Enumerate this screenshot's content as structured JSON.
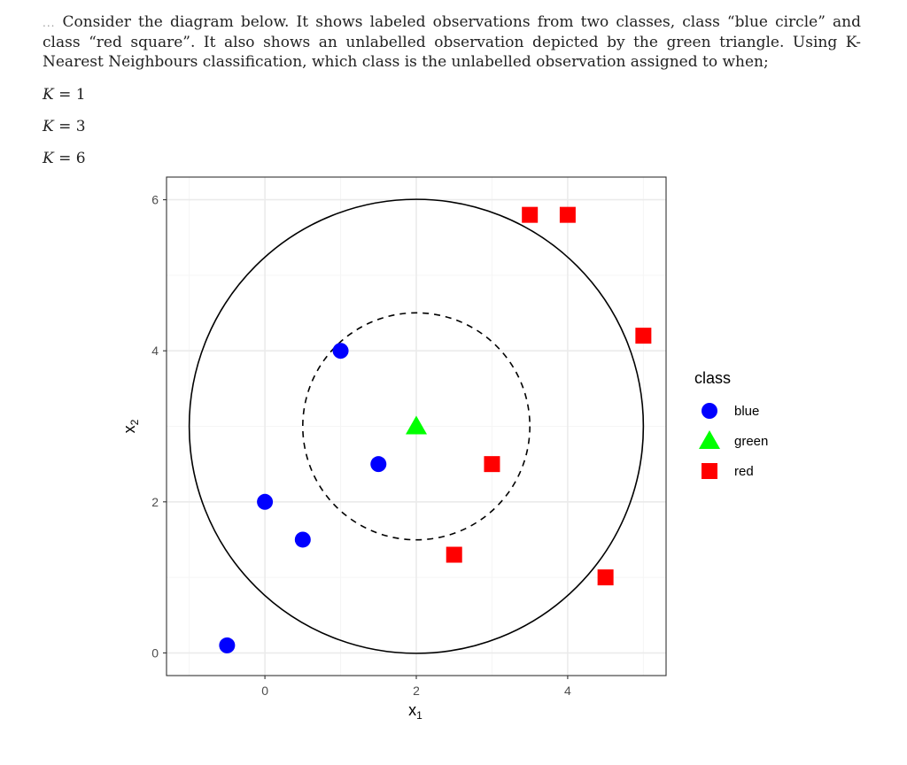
{
  "question": {
    "number": "...",
    "text": "Consider the diagram below. It shows labeled observations from two classes, class “blue circle” and class “red square”. It also shows an unlabelled observation depicted by the green triangle. Using K-Nearest Neighbours classification, which class is the unlabelled observation assigned to when;",
    "k_items": [
      {
        "var": "K",
        "eq": " = ",
        "value": "1"
      },
      {
        "var": "K",
        "eq": " = ",
        "value": "3"
      },
      {
        "var": "K",
        "eq": " = ",
        "value": "6"
      }
    ]
  },
  "chart_data": {
    "type": "scatter",
    "title": "",
    "xlabel": "x1",
    "ylabel": "x2",
    "xlim": [
      -1.3,
      5.3
    ],
    "ylim": [
      -0.3,
      6.3
    ],
    "x_ticks": [
      0,
      2,
      4
    ],
    "y_ticks": [
      0,
      2,
      4,
      6
    ],
    "grid": true,
    "legend_position": "right",
    "legend_title": "class",
    "series": [
      {
        "name": "blue",
        "shape": "circle",
        "color": "#0000FF",
        "points": [
          [
            1,
            4
          ],
          [
            1.5,
            2.5
          ],
          [
            0,
            2
          ],
          [
            0.5,
            1.5
          ],
          [
            -0.5,
            0.1
          ]
        ]
      },
      {
        "name": "green",
        "shape": "triangle",
        "color": "#00FF00",
        "points": [
          [
            2,
            3
          ]
        ]
      },
      {
        "name": "red",
        "shape": "square",
        "color": "#FF0000",
        "points": [
          [
            3.5,
            5.8
          ],
          [
            4,
            5.8
          ],
          [
            5,
            4.2
          ],
          [
            3,
            2.5
          ],
          [
            2.5,
            1.3
          ],
          [
            4.5,
            1.0
          ]
        ]
      }
    ],
    "annotations": [
      {
        "type": "circle",
        "center": [
          2,
          3
        ],
        "radius": 3,
        "linestyle": "solid",
        "color": "#000000"
      },
      {
        "type": "circle",
        "center": [
          2,
          3
        ],
        "radius": 1.5,
        "linestyle": "dashed",
        "color": "#000000"
      }
    ]
  },
  "colors": {
    "panel_border": "#333333",
    "grid_major": "#EBEBEB",
    "grid_minor": "#F5F5F5",
    "tick_label": "#4D4D4D"
  }
}
